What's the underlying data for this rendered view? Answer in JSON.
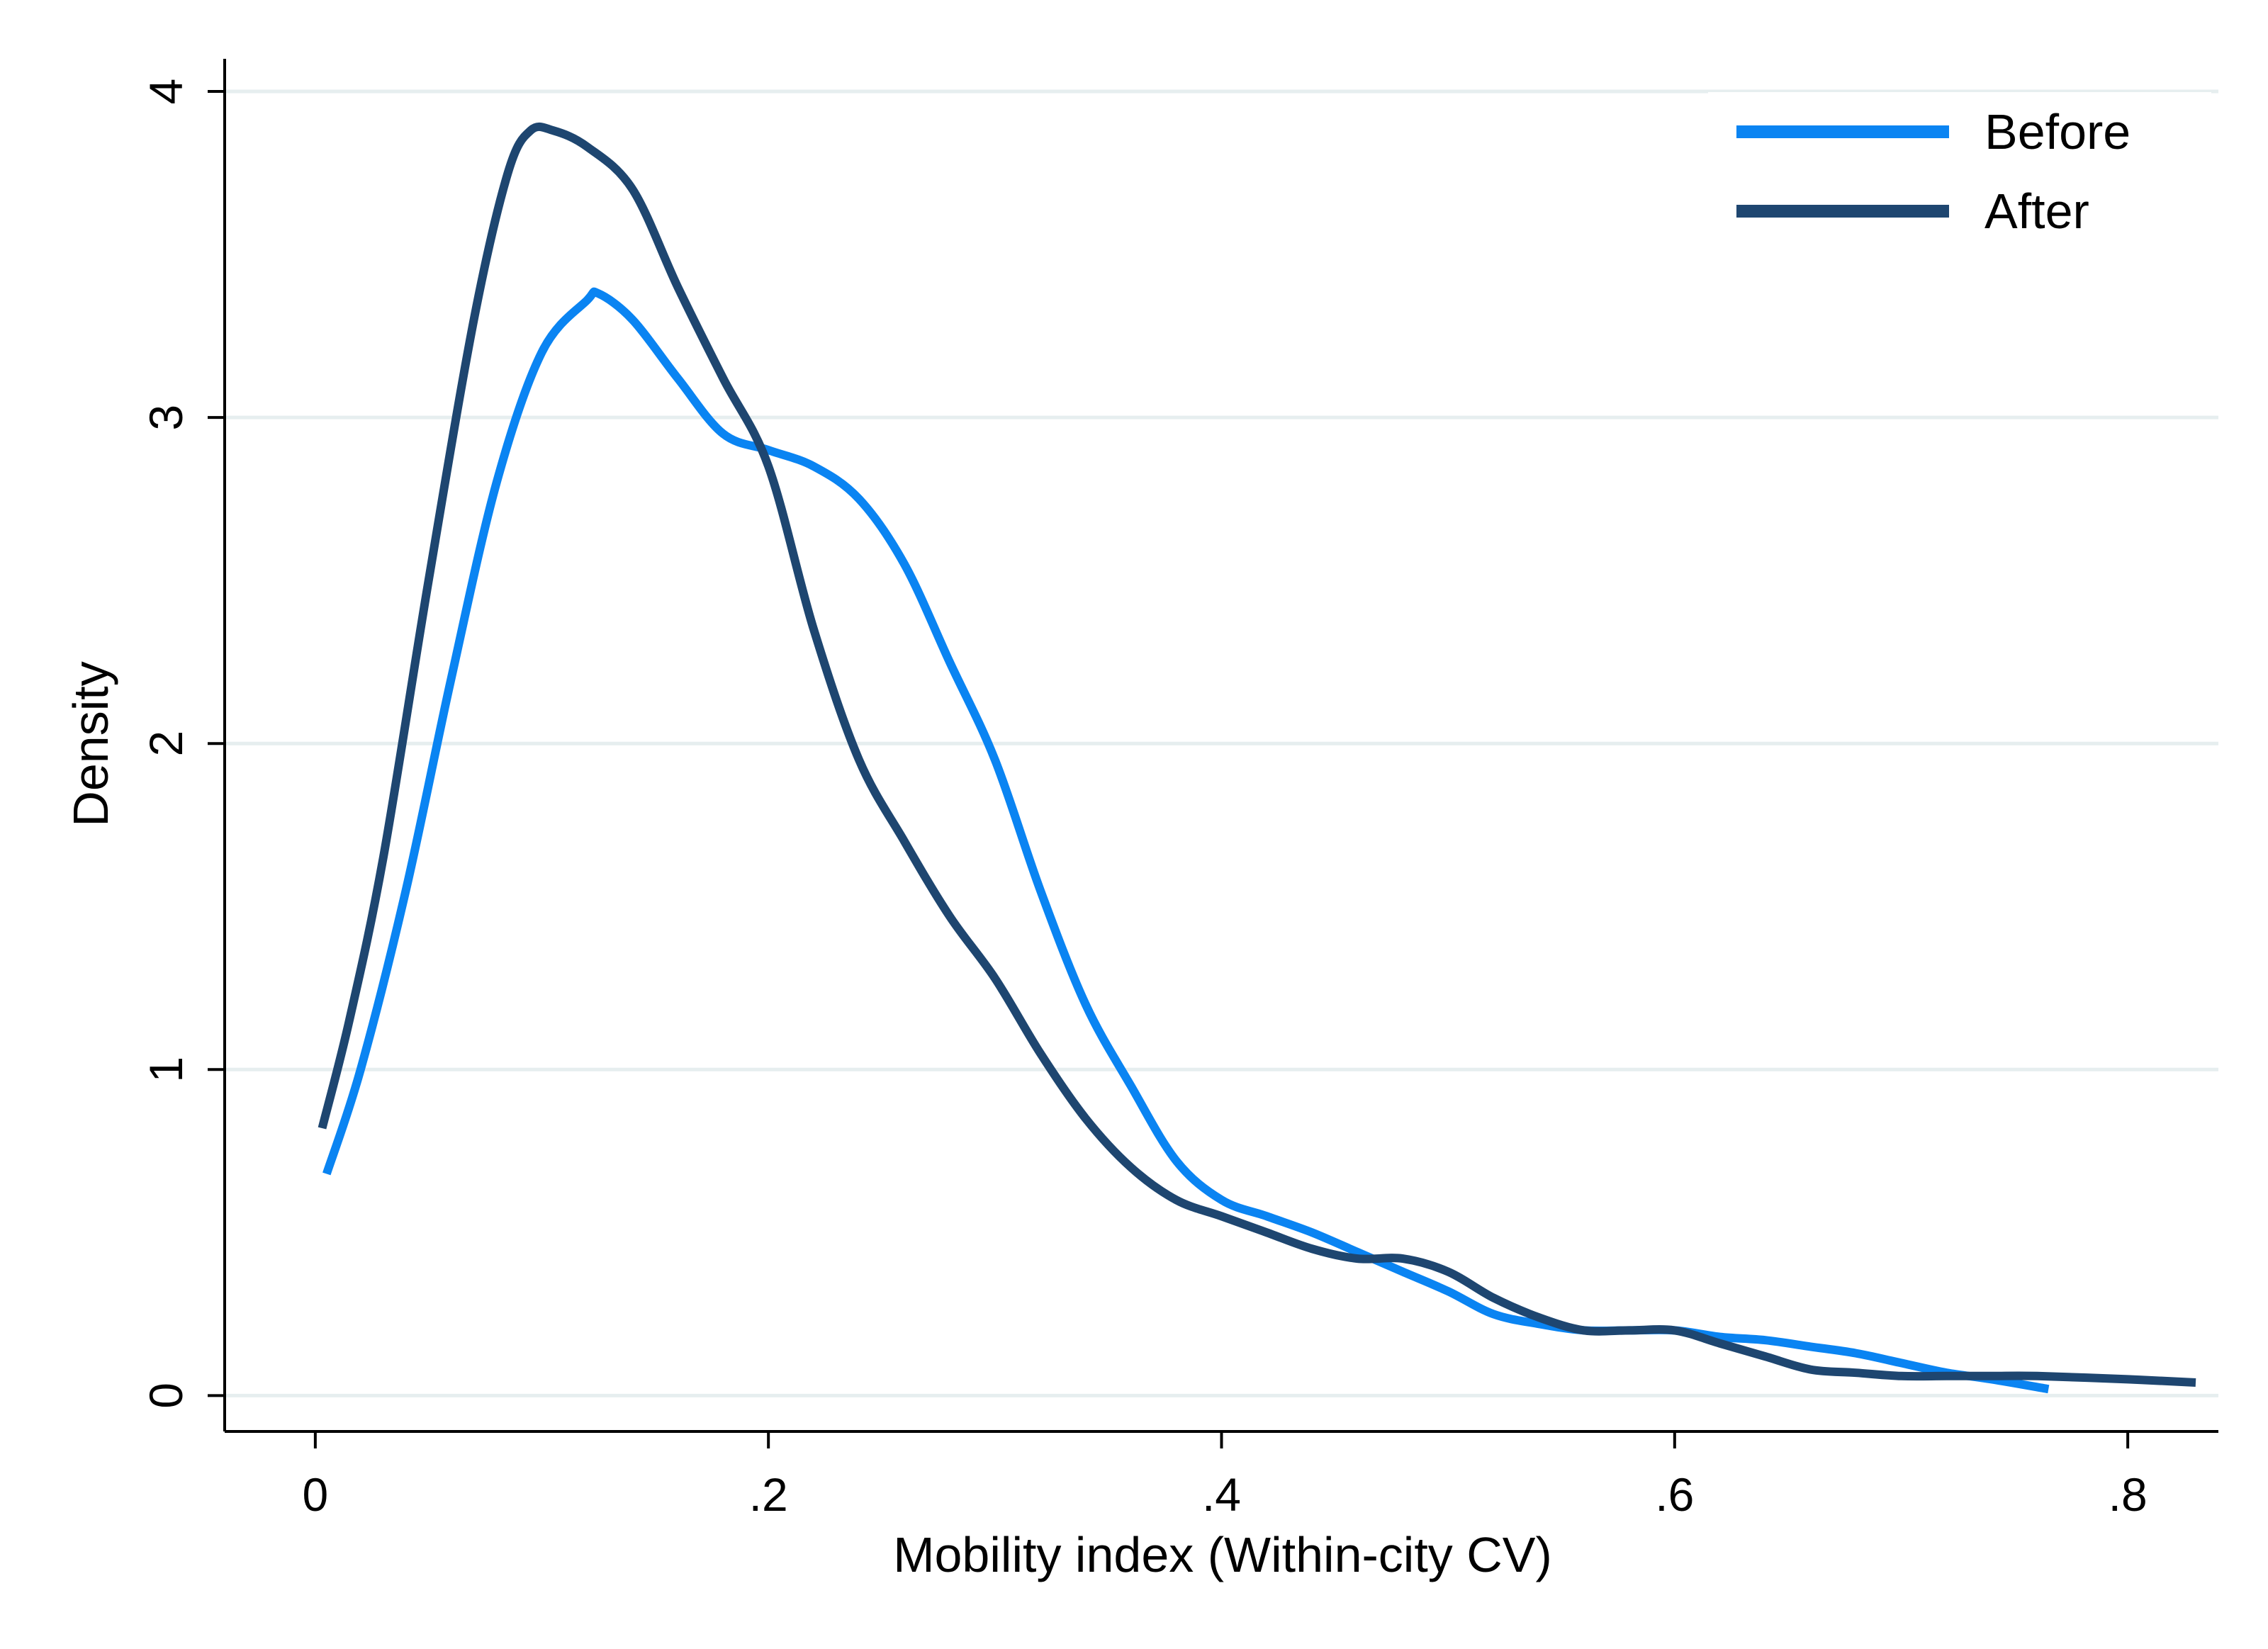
{
  "chart_data": {
    "type": "line",
    "title": "",
    "xlabel": "Mobility index (Within-city CV)",
    "ylabel": "Density",
    "xlim": [
      -0.04,
      0.84
    ],
    "ylim": [
      -0.11,
      4.1
    ],
    "xticks": [
      {
        "value": 0,
        "label": "0"
      },
      {
        "value": 0.2,
        "label": ".2"
      },
      {
        "value": 0.4,
        "label": ".4"
      },
      {
        "value": 0.6,
        "label": ".6"
      },
      {
        "value": 0.8,
        "label": ".8"
      }
    ],
    "yticks": [
      {
        "value": 0,
        "label": "0"
      },
      {
        "value": 1,
        "label": "1"
      },
      {
        "value": 2,
        "label": "2"
      },
      {
        "value": 3,
        "label": "3"
      },
      {
        "value": 4,
        "label": "4"
      }
    ],
    "grid": true,
    "legend_position": "top-right",
    "series": [
      {
        "name": "Before",
        "color": "#0a84f2",
        "x": [
          0.005,
          0.02,
          0.04,
          0.06,
          0.08,
          0.1,
          0.12,
          0.125,
          0.14,
          0.16,
          0.18,
          0.2,
          0.22,
          0.24,
          0.26,
          0.28,
          0.3,
          0.32,
          0.34,
          0.36,
          0.38,
          0.4,
          0.42,
          0.44,
          0.46,
          0.48,
          0.5,
          0.52,
          0.54,
          0.56,
          0.58,
          0.6,
          0.62,
          0.64,
          0.66,
          0.68,
          0.7,
          0.72,
          0.74,
          0.765
        ],
        "y": [
          0.68,
          1.0,
          1.55,
          2.2,
          2.8,
          3.2,
          3.36,
          3.38,
          3.3,
          3.12,
          2.95,
          2.9,
          2.85,
          2.75,
          2.55,
          2.25,
          1.95,
          1.55,
          1.2,
          0.95,
          0.72,
          0.6,
          0.55,
          0.5,
          0.44,
          0.38,
          0.32,
          0.25,
          0.22,
          0.2,
          0.2,
          0.2,
          0.18,
          0.17,
          0.15,
          0.13,
          0.1,
          0.07,
          0.05,
          0.02
        ]
      },
      {
        "name": "After",
        "color": "#1e4670",
        "x": [
          0.003,
          0.015,
          0.03,
          0.05,
          0.07,
          0.085,
          0.095,
          0.105,
          0.12,
          0.14,
          0.16,
          0.18,
          0.2,
          0.22,
          0.24,
          0.26,
          0.28,
          0.3,
          0.32,
          0.34,
          0.36,
          0.38,
          0.4,
          0.42,
          0.44,
          0.46,
          0.48,
          0.5,
          0.52,
          0.54,
          0.56,
          0.58,
          0.6,
          0.62,
          0.64,
          0.66,
          0.68,
          0.7,
          0.72,
          0.74,
          0.76,
          0.8,
          0.83
        ],
        "y": [
          0.82,
          1.15,
          1.65,
          2.5,
          3.3,
          3.75,
          3.88,
          3.88,
          3.83,
          3.7,
          3.4,
          3.12,
          2.85,
          2.35,
          1.95,
          1.7,
          1.47,
          1.28,
          1.05,
          0.85,
          0.7,
          0.6,
          0.55,
          0.5,
          0.45,
          0.42,
          0.42,
          0.38,
          0.3,
          0.24,
          0.2,
          0.2,
          0.2,
          0.16,
          0.12,
          0.08,
          0.07,
          0.06,
          0.06,
          0.06,
          0.06,
          0.05,
          0.04
        ]
      }
    ]
  }
}
